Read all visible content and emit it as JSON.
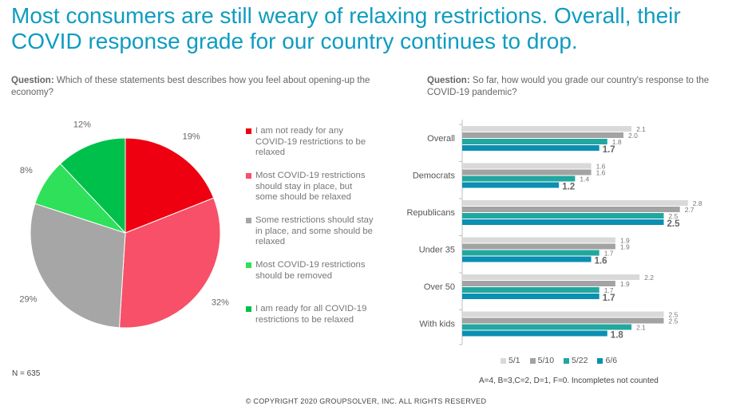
{
  "title": "Most consumers are still weary of relaxing restrictions. Overall, their COVID response grade for our country continues to drop.",
  "left_question": {
    "prefix": "Question:",
    "text": " Which of these statements best describes how you feel about opening-up the economy?"
  },
  "right_question": {
    "prefix": "Question:",
    "text": " So far, how would you grade our country's response to the COVID-19 pandemic?"
  },
  "sample_size": "N = 635",
  "grade_note": "A=4, B=3,C=2, D=1, F=0. Incompletes not counted",
  "copyright": "© COPYRIGHT 2020 GROUPSOLVER, INC. ALL RIGHTS RESERVED",
  "chart_data": [
    {
      "type": "pie",
      "slices": [
        {
          "label": "I am not ready for any COVID-19 restrictions to be relaxed",
          "value": 19,
          "display": "19%",
          "color": "#ee0010"
        },
        {
          "label": "Most COVID-19 restrictions should stay in place, but some should be relaxed",
          "value": 32,
          "display": "32%",
          "color": "#f75068"
        },
        {
          "label": "Some restrictions should stay in place, and some should be relaxed",
          "value": 29,
          "display": "29%",
          "color": "#a6a6a6"
        },
        {
          "label": "Most COVID-19 restrictions should be removed",
          "value": 8,
          "display": "8%",
          "color": "#2ee05a"
        },
        {
          "label": "I am ready for all COVID-19 restrictions to be relaxed",
          "value": 12,
          "display": "12%",
          "color": "#00c04c"
        }
      ]
    },
    {
      "type": "bar",
      "orientation": "horizontal",
      "categories": [
        "Overall",
        "Democrats",
        "Republicans",
        "Under 35",
        "Over 50",
        "With kids"
      ],
      "series": [
        {
          "name": "5/1",
          "color": "#d9d9d9",
          "values": [
            2.1,
            1.6,
            2.8,
            1.9,
            2.2,
            2.5
          ]
        },
        {
          "name": "5/10",
          "color": "#a3a3a3",
          "values": [
            2.0,
            1.6,
            2.7,
            1.9,
            1.9,
            2.5
          ]
        },
        {
          "name": "5/22",
          "color": "#21a79f",
          "values": [
            1.8,
            1.4,
            2.5,
            1.7,
            1.7,
            2.1
          ]
        },
        {
          "name": "6/6",
          "color": "#0b8fb2",
          "values": [
            1.7,
            1.2,
            2.5,
            1.6,
            1.7,
            1.8
          ]
        }
      ],
      "value_labels": [
        [
          "2.1",
          "2.0",
          "1.8",
          "1.7"
        ],
        [
          "1.6",
          "1.6",
          "1.4",
          "1.2"
        ],
        [
          "2.8",
          "2.7",
          "2.5",
          "2.5"
        ],
        [
          "1.9",
          "1.9",
          "1.7",
          "1.6"
        ],
        [
          "2.2",
          "1.9",
          "1.7",
          "1.7"
        ],
        [
          "2.5",
          "2.5",
          "2.1",
          "1.8"
        ]
      ],
      "xlim": [
        0,
        3
      ],
      "legend_position": "bottom"
    }
  ]
}
